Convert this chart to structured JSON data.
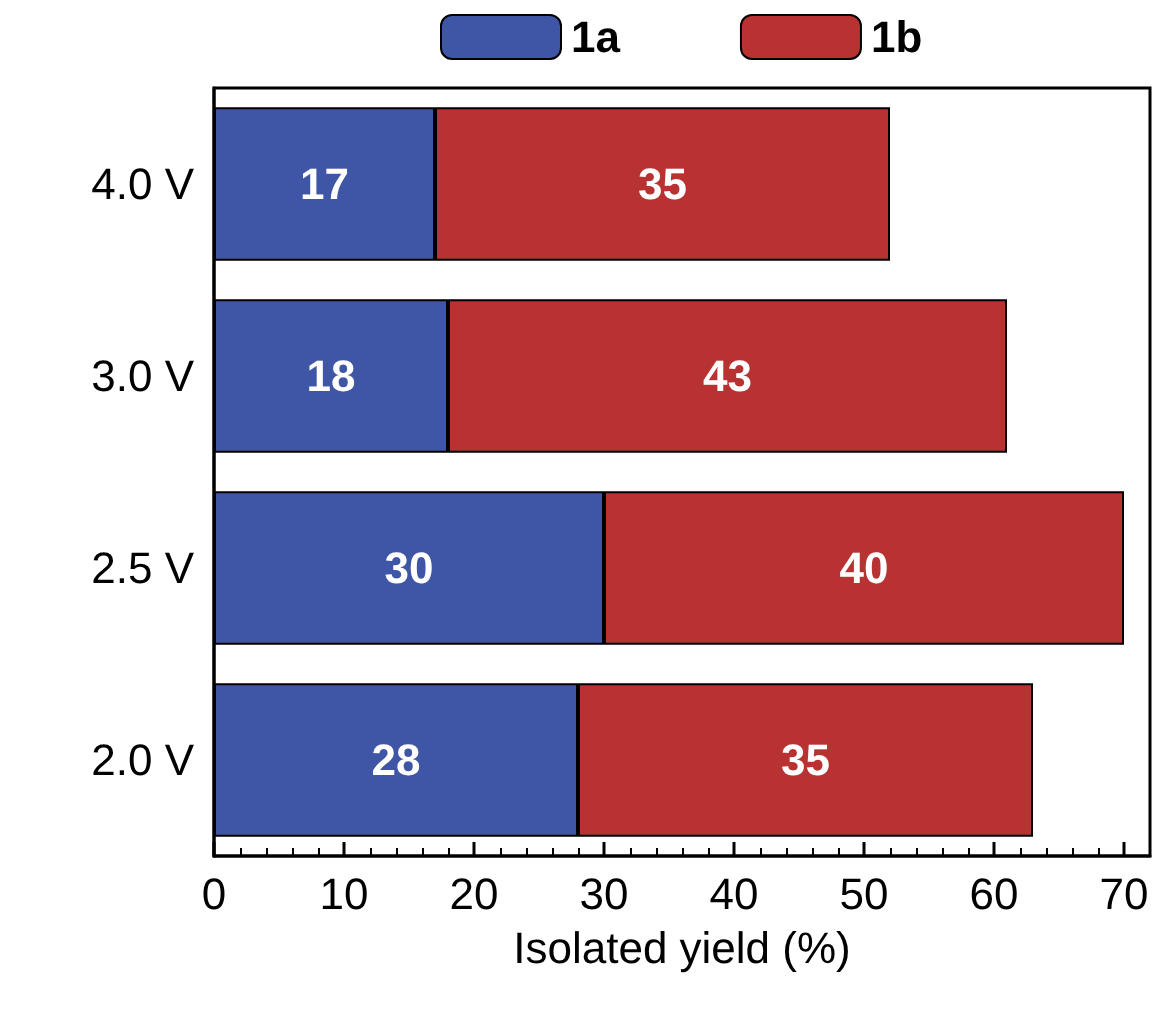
{
  "chart_data": {
    "type": "bar",
    "orientation": "horizontal",
    "stacked": true,
    "xlabel": "Isolated yield (%)",
    "categories": [
      "4.0 V",
      "3.0 V",
      "2.5 V",
      "2.0 V"
    ],
    "series": [
      {
        "name": "1a",
        "color": "#3f56a6",
        "values": [
          17,
          18,
          30,
          28
        ]
      },
      {
        "name": "1b",
        "color": "#b83232",
        "values": [
          35,
          43,
          40,
          35
        ]
      }
    ],
    "xlim": [
      0,
      72
    ],
    "xticks": [
      0,
      10,
      20,
      30,
      40,
      50,
      60,
      70
    ],
    "data_labels": true,
    "legend": "top"
  }
}
